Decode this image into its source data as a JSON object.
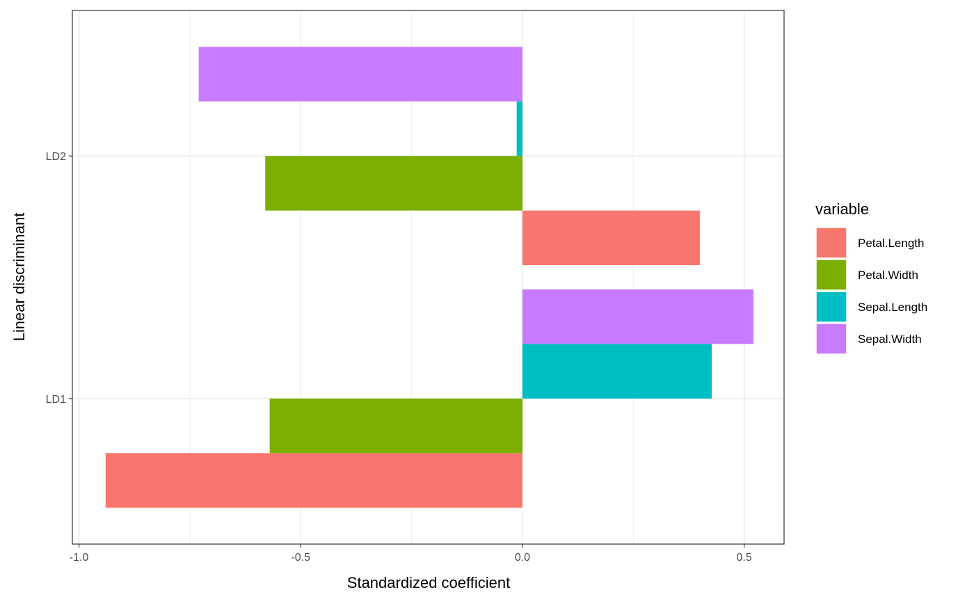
{
  "chart_data": {
    "type": "bar",
    "orientation": "horizontal",
    "xlabel": "Standardized coefficient",
    "ylabel": "Linear discriminant",
    "xlim": [
      -1.015,
      0.59
    ],
    "x_ticks": [
      -1.0,
      -0.5,
      0.0,
      0.5
    ],
    "x_tick_labels": [
      "-1.0",
      "-0.5",
      "0.0",
      "0.5"
    ],
    "x_minor_ticks": [
      -0.75,
      -0.25,
      0.25
    ],
    "categories": [
      "LD1",
      "LD2"
    ],
    "grid": true,
    "legend": {
      "title": "variable",
      "placement": "right",
      "entries": [
        "Petal.Length",
        "Petal.Width",
        "Sepal.Length",
        "Sepal.Width"
      ]
    },
    "series": [
      {
        "name": "Petal.Length",
        "color": "#F8766D",
        "values": [
          -0.94,
          0.4
        ]
      },
      {
        "name": "Petal.Width",
        "color": "#7CAE00",
        "values": [
          -0.57,
          -0.58
        ]
      },
      {
        "name": "Sepal.Length",
        "color": "#00BFC4",
        "values": [
          0.427,
          -0.013
        ]
      },
      {
        "name": "Sepal.Width",
        "color": "#C77CFF",
        "values": [
          0.521,
          -0.73
        ]
      }
    ]
  }
}
